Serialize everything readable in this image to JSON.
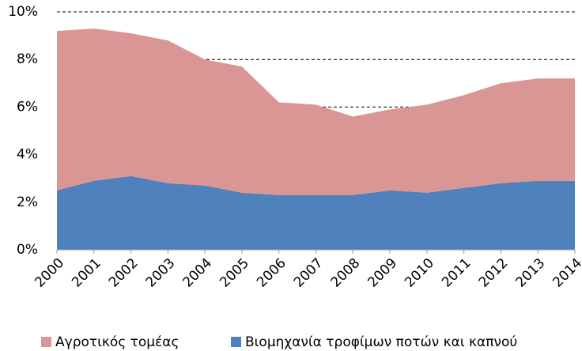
{
  "chart_data": {
    "type": "stacked-area",
    "categories": [
      "2000",
      "2001",
      "2002",
      "2003",
      "2004",
      "2005",
      "2006",
      "2007",
      "2008",
      "2009",
      "2010",
      "2011",
      "2012",
      "2013",
      "2014"
    ],
    "series": [
      {
        "name": "Αγροτικός τομέας",
        "color": "#d99694",
        "values": [
          6.7,
          6.4,
          6.0,
          6.0,
          5.3,
          5.3,
          3.9,
          3.8,
          3.3,
          3.4,
          3.7,
          3.9,
          4.2,
          4.3,
          4.3
        ]
      },
      {
        "name": "Βιομηχανία τροφίμων ποτών και καπνού",
        "color": "#4f81bd",
        "values": [
          2.5,
          2.9,
          3.1,
          2.8,
          2.7,
          2.4,
          2.3,
          2.3,
          2.3,
          2.5,
          2.4,
          2.6,
          2.8,
          2.9,
          2.9
        ]
      }
    ],
    "ylim": [
      0,
      10
    ],
    "yticks": [
      {
        "value": 0,
        "label": "0%"
      },
      {
        "value": 2,
        "label": "2%"
      },
      {
        "value": 4,
        "label": "4%"
      },
      {
        "value": 6,
        "label": "6%"
      },
      {
        "value": 8,
        "label": "8%"
      },
      {
        "value": 10,
        "label": "10%"
      }
    ],
    "grid": true
  }
}
